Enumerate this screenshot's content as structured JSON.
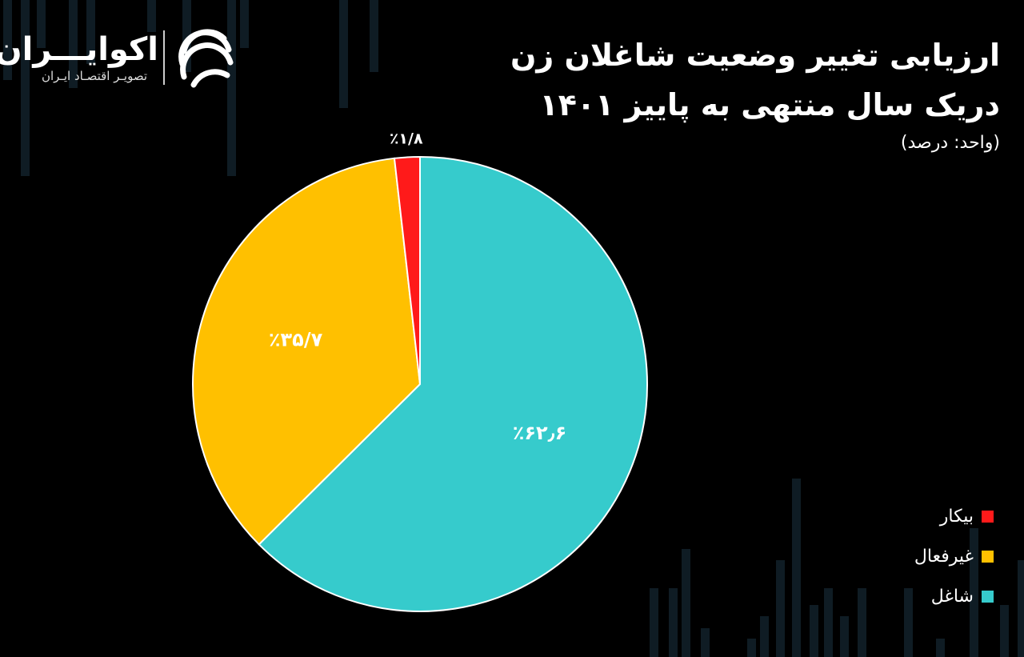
{
  "header": {
    "title_line1": "ارزیابی تغییر وضعیت شاغلان زن",
    "title_line2": "دریک سال منتهی به پاییز ۱۴۰۱",
    "unit_note": "(واحد: درصد)"
  },
  "brand": {
    "name": "اکوایـــران",
    "tagline": "تصویـر اقتصـاد ایـران",
    "logo_icon": "stacked-arc-logo-icon"
  },
  "colors": {
    "background": "#000000",
    "bg_bars": "#0f1c24",
    "employed": "#36cbcc",
    "inactive": "#ffc000",
    "unemployed": "#ff1a1a"
  },
  "chart_data": {
    "type": "pie",
    "start_angle_deg": 0,
    "direction": "clockwise",
    "slices": [
      {
        "label": "شاغل",
        "value": 62.6,
        "display": "٪۶۲٫۶",
        "color": "#36cbcc"
      },
      {
        "label": "غیرفعال",
        "value": 35.7,
        "display": "٪۳۵/۷",
        "color": "#ffc000"
      },
      {
        "label": "بیکار",
        "value": 1.8,
        "display": "٪۱/۸",
        "color": "#ff1a1a"
      }
    ],
    "legend": {
      "placement": "bottom-right",
      "items": [
        {
          "label": "بیکار",
          "color": "#ff1a1a"
        },
        {
          "label": "غیرفعال",
          "color": "#ffc000"
        },
        {
          "label": "شاغل",
          "color": "#36cbcc"
        }
      ]
    }
  }
}
